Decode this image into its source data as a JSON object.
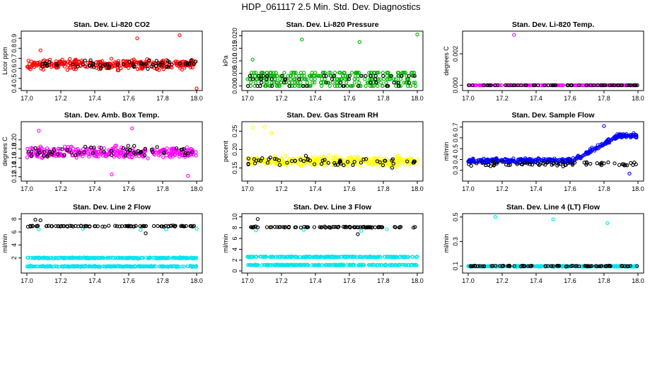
{
  "page_title": "HDP_061117  2.5 Min. Std. Dev. Diagnostics",
  "chart_data": [
    {
      "type": "scatter",
      "title": "Stan. Dev. Li-820 CO2",
      "ylabel": "Licor ppm",
      "xlabel": "",
      "xlim": [
        17.0,
        18.0
      ],
      "ylim": [
        0.4,
        0.95
      ],
      "xticks": [
        "17.0",
        "17.2",
        "17.4",
        "17.6",
        "17.8",
        "18.0"
      ],
      "yticks": [
        "0.4",
        "0.5",
        "0.6",
        "0.7",
        "0.8",
        "0.9"
      ],
      "series": [
        {
          "name": "primary",
          "color": "#ff0000",
          "pattern": "band",
          "n": 320,
          "base": 0.64,
          "spread": 0.07,
          "outliers": [
            [
              17.08,
              0.78
            ],
            [
              17.65,
              0.9
            ],
            [
              17.9,
              0.93
            ],
            [
              18.0,
              0.4
            ]
          ]
        },
        {
          "name": "secondary",
          "color": "#000000",
          "pattern": "band",
          "n": 60,
          "base": 0.64,
          "spread": 0.06,
          "outliers": []
        }
      ]
    },
    {
      "type": "scatter",
      "title": "Stan. Dev. Li-820 Pressure",
      "ylabel": "kPa",
      "xlabel": "",
      "xlim": [
        17.0,
        18.0
      ],
      "ylim": [
        -0.001,
        0.021
      ],
      "xticks": [
        "17.0",
        "17.2",
        "17.4",
        "17.6",
        "17.8",
        "18.0"
      ],
      "yticks": [
        "0.000",
        "0.005",
        "0.010",
        "0.015",
        "0.020"
      ],
      "series": [
        {
          "name": "primary",
          "color": "#00b000",
          "pattern": "levels",
          "n": 300,
          "levels": [
            0.0,
            0.0013,
            0.0027,
            0.004,
            0.0053
          ],
          "outliers": [
            [
              17.03,
              0.0105
            ],
            [
              17.32,
              0.0185
            ],
            [
              17.66,
              0.0175
            ],
            [
              18.0,
              0.0205
            ]
          ]
        },
        {
          "name": "secondary",
          "color": "#000000",
          "pattern": "levels",
          "n": 50,
          "levels": [
            0.0,
            0.0013,
            0.0027,
            0.004
          ],
          "outliers": []
        }
      ]
    },
    {
      "type": "scatter",
      "title": "Stan. Dev. Li-820 Temp.",
      "ylabel": "degrees C",
      "xlabel": "",
      "xlim": [
        17.0,
        18.0
      ],
      "ylim": [
        -0.0002,
        0.0033
      ],
      "xticks": [
        "17.0",
        "17.2",
        "17.4",
        "17.6",
        "17.8",
        "18.0"
      ],
      "yticks": [
        "0.000",
        "0.002"
      ],
      "series": [
        {
          "name": "primary",
          "color": "#ff00ff",
          "pattern": "flat",
          "n": 200,
          "base": 0.0,
          "outliers": [
            [
              17.27,
              0.0032
            ]
          ]
        },
        {
          "name": "secondary",
          "color": "#000000",
          "pattern": "flat",
          "n": 60,
          "base": 0.0,
          "outliers": []
        }
      ]
    },
    {
      "type": "scatter",
      "title": "Stan. Dev. Amb. Box Temp.",
      "ylabel": "degrees C",
      "xlabel": "",
      "xlim": [
        17.0,
        18.0
      ],
      "ylim": [
        0.115,
        0.235
      ],
      "xticks": [
        "17.0",
        "17.2",
        "17.4",
        "17.6",
        "17.8",
        "18.0"
      ],
      "yticks": [
        "0.12",
        "0.14",
        "0.16",
        "0.18",
        "0.20"
      ],
      "series": [
        {
          "name": "primary",
          "color": "#ff00ff",
          "pattern": "band",
          "n": 320,
          "base": 0.172,
          "spread": 0.018,
          "outliers": [
            [
              17.07,
              0.22
            ],
            [
              17.62,
              0.225
            ],
            [
              17.5,
              0.125
            ],
            [
              17.95,
              0.122
            ]
          ]
        },
        {
          "name": "secondary",
          "color": "#000000",
          "pattern": "band",
          "n": 60,
          "base": 0.175,
          "spread": 0.016,
          "outliers": []
        }
      ]
    },
    {
      "type": "scatter",
      "title": "Stan. Dev. Gas Stream RH",
      "ylabel": "percent",
      "xlabel": "",
      "xlim": [
        17.0,
        18.0
      ],
      "ylim": [
        0.12,
        0.27
      ],
      "xticks": [
        "17.0",
        "17.2",
        "17.4",
        "17.6",
        "17.8",
        "18.0"
      ],
      "yticks": [
        "0.15",
        "0.20",
        "0.25"
      ],
      "series": [
        {
          "name": "primary",
          "color": "#ffff00",
          "pattern": "band",
          "n": 320,
          "base": 0.168,
          "spread": 0.02,
          "outliers": [
            [
              17.03,
              0.26
            ],
            [
              17.1,
              0.262
            ],
            [
              17.14,
              0.245
            ]
          ]
        },
        {
          "name": "secondary",
          "color": "#000000",
          "pattern": "band",
          "n": 60,
          "base": 0.168,
          "spread": 0.02,
          "outliers": []
        }
      ]
    },
    {
      "type": "scatter",
      "title": "Stan. Dev. Sample Flow",
      "ylabel": "ml/min",
      "xlabel": "",
      "xlim": [
        17.0,
        18.0
      ],
      "ylim": [
        0.22,
        0.73
      ],
      "xticks": [
        "17.0",
        "17.2",
        "17.4",
        "17.6",
        "17.8",
        "18.0"
      ],
      "yticks": [
        "0.3",
        "0.4",
        "0.5",
        "0.6",
        "0.7"
      ],
      "series": [
        {
          "name": "primary",
          "color": "#0000ff",
          "pattern": "ramp",
          "n": 360,
          "base": 0.39,
          "spread": 0.03,
          "ramp_start": 17.62,
          "ramp_end": 18.0,
          "ramp_to": 0.62,
          "outliers": [
            [
              17.8,
              0.71
            ],
            [
              17.95,
              0.27
            ]
          ]
        },
        {
          "name": "secondary",
          "color": "#000000",
          "pattern": "band",
          "n": 70,
          "base": 0.36,
          "spread": 0.03,
          "outliers": []
        }
      ]
    },
    {
      "type": "scatter",
      "title": "Stan. Dev. Line 2 Flow",
      "ylabel": "ml/min",
      "xlabel": "",
      "xlim": [
        17.0,
        18.0
      ],
      "ylim": [
        0,
        8.5
      ],
      "xticks": [
        "17.0",
        "17.2",
        "17.4",
        "17.6",
        "17.8",
        "18.0"
      ],
      "yticks": [
        "2",
        "4",
        "6",
        "8"
      ],
      "series": [
        {
          "name": "primary",
          "color": "#00e5ee",
          "pattern": "twoband",
          "n": 500,
          "levels": [
            2.0,
            0.7
          ],
          "spread": 0.12,
          "outliers": [
            [
              17.07,
              6.4
            ],
            [
              17.33,
              6.5
            ],
            [
              17.67,
              6.3
            ],
            [
              17.82,
              6.4
            ],
            [
              18.0,
              6.5
            ]
          ]
        },
        {
          "name": "secondary",
          "color": "#000000",
          "pattern": "band",
          "n": 90,
          "base": 6.9,
          "spread": 0.12,
          "outliers": [
            [
              17.05,
              7.9
            ],
            [
              17.08,
              7.8
            ],
            [
              17.7,
              5.8
            ]
          ]
        }
      ]
    },
    {
      "type": "scatter",
      "title": "Stan. Dev. Line 3 Flow",
      "ylabel": "ml/min",
      "xlabel": "",
      "xlim": [
        17.0,
        18.0
      ],
      "ylim": [
        0,
        10.2
      ],
      "xticks": [
        "17.0",
        "17.2",
        "17.4",
        "17.6",
        "17.8",
        "18.0"
      ],
      "yticks": [
        "0",
        "2",
        "4",
        "6",
        "8",
        "10"
      ],
      "series": [
        {
          "name": "primary",
          "color": "#00e5ee",
          "pattern": "twoband",
          "n": 500,
          "levels": [
            2.6,
            1.1
          ],
          "spread": 0.12,
          "outliers": [
            [
              17.05,
              7.5
            ],
            [
              17.33,
              7.6
            ],
            [
              17.67,
              7.4
            ],
            [
              17.82,
              7.7
            ]
          ]
        },
        {
          "name": "secondary",
          "color": "#000000",
          "pattern": "band",
          "n": 90,
          "base": 8.1,
          "spread": 0.15,
          "outliers": [
            [
              17.06,
              9.6
            ],
            [
              17.65,
              6.8
            ]
          ]
        }
      ]
    },
    {
      "type": "scatter",
      "title": "Stan. Dev. Line 4 (LT) Flow",
      "ylabel": "ml/min",
      "xlabel": "",
      "xlim": [
        17.0,
        18.0
      ],
      "ylim": [
        0.06,
        0.51
      ],
      "xticks": [
        "17.0",
        "17.2",
        "17.4",
        "17.6",
        "17.8",
        "18.0"
      ],
      "yticks": [
        "0.1",
        "0.3",
        "0.5"
      ],
      "series": [
        {
          "name": "primary",
          "color": "#00e5ee",
          "pattern": "band",
          "n": 320,
          "base": 0.098,
          "spread": 0.006,
          "outliers": [
            [
              17.16,
              0.5
            ],
            [
              17.5,
              0.48
            ],
            [
              17.82,
              0.45
            ]
          ]
        },
        {
          "name": "secondary",
          "color": "#000000",
          "pattern": "band",
          "n": 90,
          "base": 0.1,
          "spread": 0.005,
          "outliers": []
        }
      ]
    }
  ]
}
